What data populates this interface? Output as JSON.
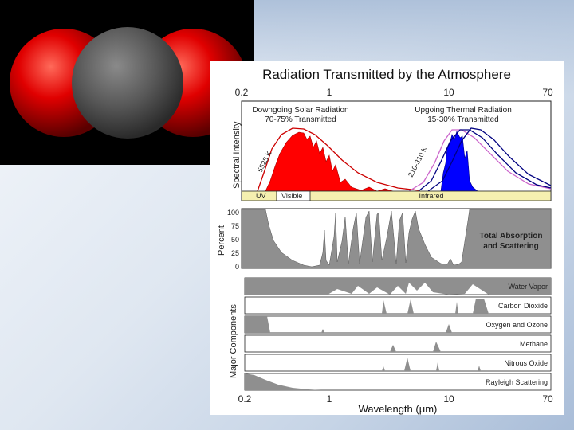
{
  "figure": {
    "title": "Radiation Transmitted by the Atmosphere",
    "top_ticks": [
      "0.2",
      "1",
      "10",
      "70"
    ],
    "bottom_ticks": [
      "0.2",
      "1",
      "10",
      "70"
    ],
    "xlabel": "Wavelength (μm)",
    "spectrum": {
      "ylabel": "Spectral Intensity",
      "solar_label_1": "Downgoing Solar Radiation",
      "solar_label_2": "70-75% Transmitted",
      "thermal_label_1": "Upgoing Thermal Radiation",
      "thermal_label_2": "15-30% Transmitted",
      "solar_temp": "5525 K",
      "thermal_temp": "210-310 K",
      "bands": [
        "UV",
        "Visible",
        "Infrared"
      ]
    },
    "total": {
      "ylabel": "Percent",
      "y_ticks": [
        "100",
        "75",
        "50",
        "25",
        "0"
      ],
      "label_1": "Total Absorption",
      "label_2": "and Scattering"
    },
    "components": {
      "ylabel": "Major Components",
      "rows": [
        "Water Vapor",
        "Carbon Dioxide",
        "Oxygen and Ozone",
        "Methane",
        "Nitrous Oxide",
        "Rayleigh Scattering"
      ]
    }
  },
  "colors": {
    "solar": "#ff0000",
    "thermal": "#0000ff",
    "band_bar": "#f5f0b0",
    "absorption": "#8f8f8f",
    "molecule_oxygen": "#e00000",
    "molecule_carbon": "#5a5a5a"
  }
}
